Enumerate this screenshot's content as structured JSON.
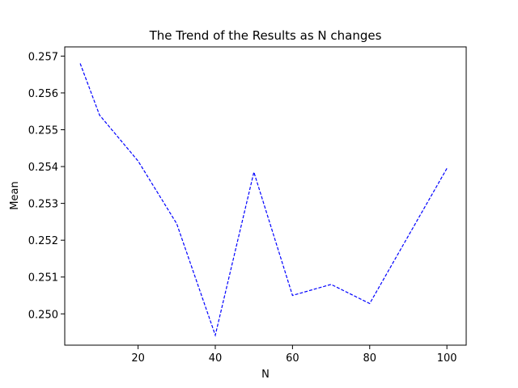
{
  "chart_data": {
    "type": "line",
    "title": "The Trend of the Results as N changes",
    "xlabel": "N",
    "ylabel": "Mean",
    "xlim": [
      1,
      105
    ],
    "ylim": [
      0.24915,
      0.25725
    ],
    "xticks": [
      20,
      40,
      60,
      80,
      100
    ],
    "yticks": [
      0.25,
      0.251,
      0.252,
      0.253,
      0.254,
      0.255,
      0.256,
      0.257
    ],
    "grid": false,
    "series": [
      {
        "color": "#0000ff",
        "linestyle": "dashed",
        "x": [
          5,
          10,
          20,
          30,
          40,
          50,
          60,
          70,
          80,
          100
        ],
        "y": [
          0.2568,
          0.2554,
          0.25415,
          0.25245,
          0.24942,
          0.25385,
          0.2505,
          0.2508,
          0.25028,
          0.25395
        ]
      }
    ]
  }
}
